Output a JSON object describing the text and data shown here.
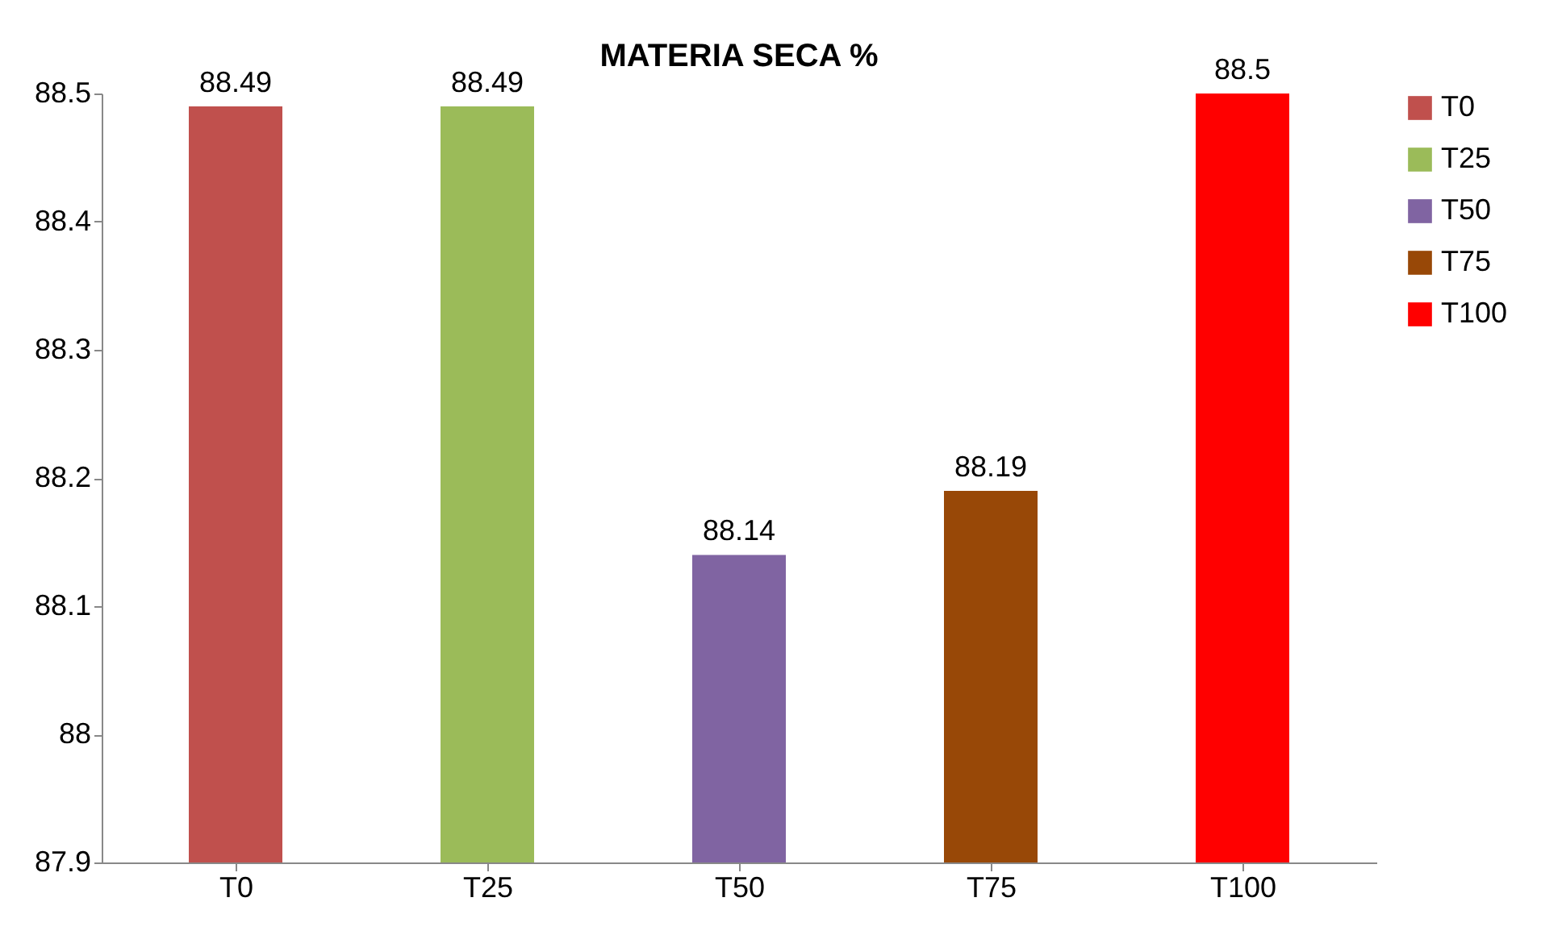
{
  "chart_data": {
    "type": "bar",
    "title": "MATERIA SECA %",
    "categories": [
      "T0",
      "T25",
      "T50",
      "T75",
      "T100"
    ],
    "series": [
      {
        "name": "T0",
        "color": "#c0504d",
        "values": [
          88.49,
          null,
          null,
          null,
          null
        ]
      },
      {
        "name": "T25",
        "color": "#9bbb59",
        "values": [
          null,
          88.49,
          null,
          null,
          null
        ]
      },
      {
        "name": "T50",
        "color": "#8064a2",
        "values": [
          null,
          null,
          88.14,
          null,
          null
        ]
      },
      {
        "name": "T75",
        "color": "#984807",
        "values": [
          null,
          null,
          null,
          88.19,
          null
        ]
      },
      {
        "name": "T100",
        "color": "#ff0000",
        "values": [
          null,
          null,
          null,
          null,
          88.5
        ]
      }
    ],
    "ylim": [
      87.9,
      88.5
    ],
    "yticks": [
      87.9,
      88,
      88.1,
      88.2,
      88.3,
      88.4,
      88.5
    ],
    "data_labels": true,
    "legend": "right",
    "grid": false
  }
}
